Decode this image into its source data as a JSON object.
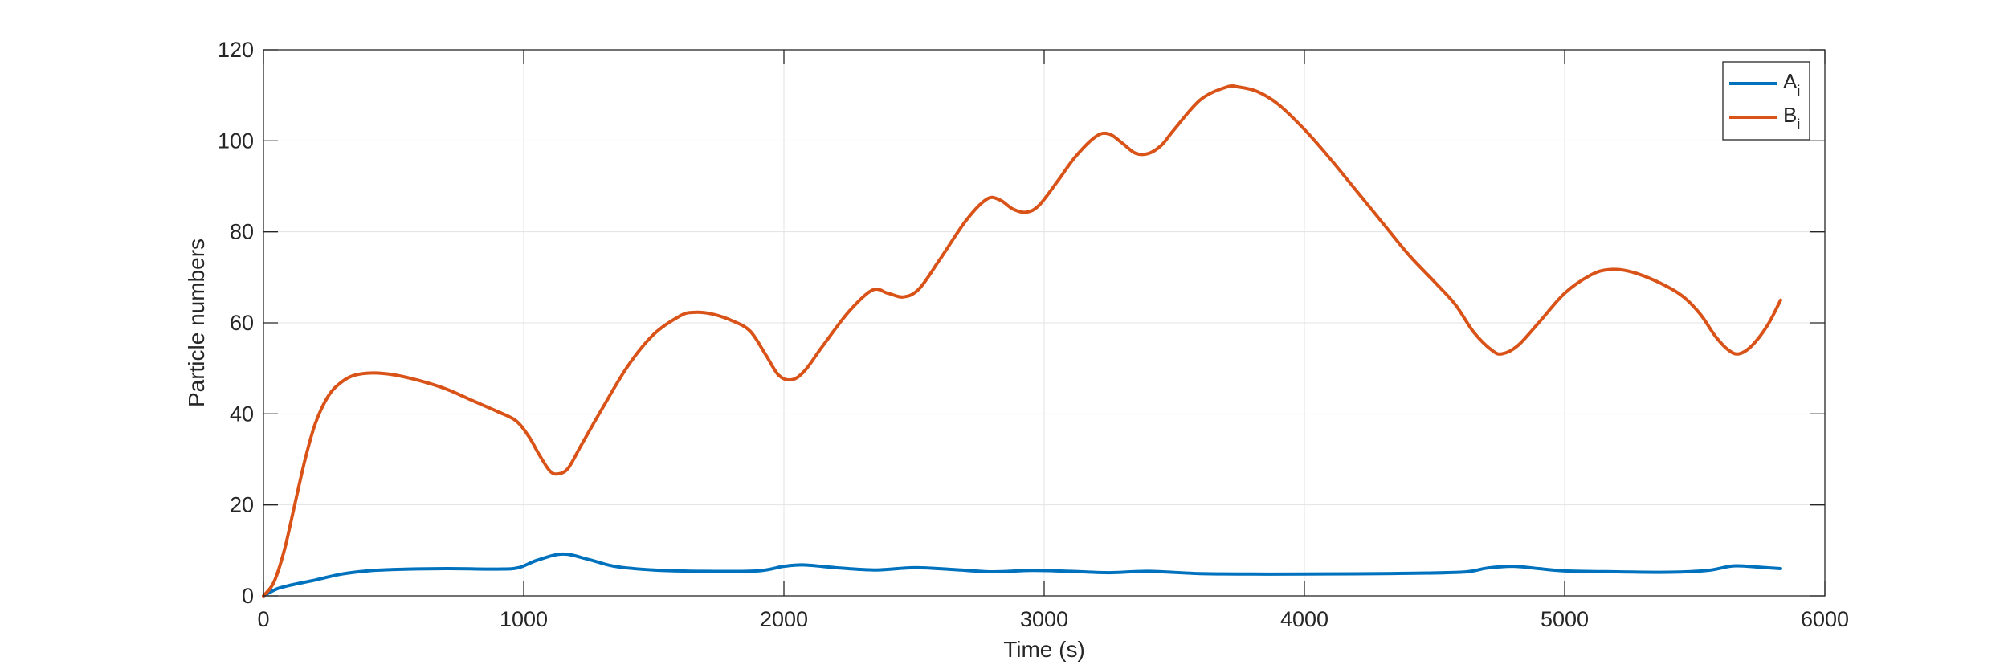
{
  "chart_data": {
    "type": "line",
    "xlabel": "Time (s)",
    "ylabel": "Particle numbers",
    "xlim": [
      0,
      6000
    ],
    "ylim": [
      0,
      120
    ],
    "xticks": [
      0,
      1000,
      2000,
      3000,
      4000,
      5000,
      6000
    ],
    "yticks": [
      0,
      20,
      40,
      60,
      80,
      100,
      120
    ],
    "xtick_labels": [
      "0",
      "1000",
      "2000",
      "3000",
      "4000",
      "5000",
      "6000"
    ],
    "ytick_labels": [
      "0",
      "20",
      "40",
      "60",
      "80",
      "100",
      "120"
    ],
    "grid": true,
    "legend": {
      "placement": "top-right"
    },
    "series": [
      {
        "name": "A",
        "name_sub": "i",
        "color": "#0072BD",
        "points": [
          [
            0,
            0
          ],
          [
            50,
            1.5
          ],
          [
            100,
            2.3
          ],
          [
            200,
            3.5
          ],
          [
            300,
            4.8
          ],
          [
            400,
            5.5
          ],
          [
            500,
            5.8
          ],
          [
            700,
            6
          ],
          [
            900,
            5.9
          ],
          [
            980,
            6.2
          ],
          [
            1050,
            7.8
          ],
          [
            1150,
            9.2
          ],
          [
            1250,
            8
          ],
          [
            1350,
            6.5
          ],
          [
            1500,
            5.7
          ],
          [
            1700,
            5.4
          ],
          [
            1900,
            5.5
          ],
          [
            2000,
            6.5
          ],
          [
            2080,
            6.8
          ],
          [
            2200,
            6.2
          ],
          [
            2350,
            5.7
          ],
          [
            2500,
            6.2
          ],
          [
            2650,
            5.8
          ],
          [
            2800,
            5.3
          ],
          [
            2950,
            5.6
          ],
          [
            3100,
            5.4
          ],
          [
            3250,
            5.1
          ],
          [
            3400,
            5.4
          ],
          [
            3600,
            4.9
          ],
          [
            3800,
            4.8
          ],
          [
            4000,
            4.8
          ],
          [
            4300,
            4.9
          ],
          [
            4600,
            5.2
          ],
          [
            4700,
            6.1
          ],
          [
            4800,
            6.5
          ],
          [
            4900,
            6
          ],
          [
            5000,
            5.5
          ],
          [
            5200,
            5.3
          ],
          [
            5400,
            5.2
          ],
          [
            5550,
            5.6
          ],
          [
            5650,
            6.6
          ],
          [
            5750,
            6.3
          ],
          [
            5830,
            6
          ]
        ]
      },
      {
        "name": "B",
        "name_sub": "i",
        "color": "#D95319",
        "points": [
          [
            0,
            0
          ],
          [
            40,
            3
          ],
          [
            80,
            10
          ],
          [
            120,
            20
          ],
          [
            160,
            30
          ],
          [
            200,
            38
          ],
          [
            250,
            44
          ],
          [
            300,
            47
          ],
          [
            350,
            48.5
          ],
          [
            420,
            49
          ],
          [
            500,
            48.6
          ],
          [
            600,
            47.3
          ],
          [
            700,
            45.5
          ],
          [
            800,
            43
          ],
          [
            900,
            40.5
          ],
          [
            970,
            38.5
          ],
          [
            1020,
            35
          ],
          [
            1060,
            31
          ],
          [
            1100,
            27.5
          ],
          [
            1130,
            26.8
          ],
          [
            1170,
            28
          ],
          [
            1220,
            33
          ],
          [
            1300,
            41
          ],
          [
            1400,
            50.5
          ],
          [
            1500,
            57.5
          ],
          [
            1600,
            61.5
          ],
          [
            1650,
            62.3
          ],
          [
            1720,
            62
          ],
          [
            1800,
            60.5
          ],
          [
            1870,
            58.2
          ],
          [
            1930,
            53
          ],
          [
            1980,
            48.5
          ],
          [
            2030,
            47.5
          ],
          [
            2080,
            49.5
          ],
          [
            2150,
            55
          ],
          [
            2250,
            62.5
          ],
          [
            2340,
            67.2
          ],
          [
            2400,
            66.5
          ],
          [
            2460,
            65.7
          ],
          [
            2520,
            67.5
          ],
          [
            2600,
            74
          ],
          [
            2700,
            82.5
          ],
          [
            2780,
            87.2
          ],
          [
            2830,
            87
          ],
          [
            2880,
            85
          ],
          [
            2930,
            84.3
          ],
          [
            2980,
            85.8
          ],
          [
            3050,
            91
          ],
          [
            3120,
            96.5
          ],
          [
            3200,
            101
          ],
          [
            3250,
            101.5
          ],
          [
            3300,
            99.5
          ],
          [
            3350,
            97.3
          ],
          [
            3400,
            97.2
          ],
          [
            3450,
            99
          ],
          [
            3500,
            102.5
          ],
          [
            3600,
            109
          ],
          [
            3700,
            111.8
          ],
          [
            3750,
            111.8
          ],
          [
            3820,
            110.8
          ],
          [
            3900,
            108
          ],
          [
            4000,
            102.5
          ],
          [
            4100,
            96
          ],
          [
            4200,
            89
          ],
          [
            4300,
            82
          ],
          [
            4400,
            75
          ],
          [
            4500,
            69
          ],
          [
            4580,
            64
          ],
          [
            4650,
            58
          ],
          [
            4720,
            54
          ],
          [
            4760,
            53.2
          ],
          [
            4820,
            55
          ],
          [
            4900,
            60
          ],
          [
            5000,
            66.5
          ],
          [
            5100,
            70.5
          ],
          [
            5170,
            71.7
          ],
          [
            5250,
            71.3
          ],
          [
            5350,
            69.2
          ],
          [
            5450,
            66
          ],
          [
            5520,
            62
          ],
          [
            5580,
            57
          ],
          [
            5630,
            54
          ],
          [
            5670,
            53.2
          ],
          [
            5720,
            55
          ],
          [
            5780,
            59.5
          ],
          [
            5830,
            65
          ]
        ]
      }
    ]
  }
}
